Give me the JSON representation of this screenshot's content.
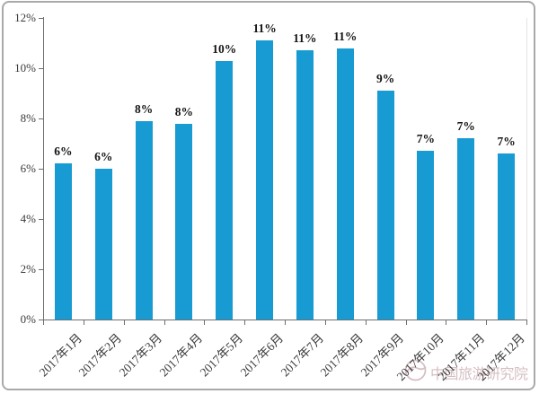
{
  "chart_data": {
    "type": "bar",
    "title": "",
    "xlabel": "",
    "ylabel": "",
    "categories": [
      "2017年1月",
      "2017年2月",
      "2017年3月",
      "2017年4月",
      "2017年5月",
      "2017年6月",
      "2017年7月",
      "2017年8月",
      "2017年9月",
      "2017年10月",
      "2017年11月",
      "2017年12月"
    ],
    "values": [
      6.2,
      6.0,
      7.9,
      7.8,
      10.3,
      11.1,
      10.7,
      10.8,
      9.1,
      6.7,
      7.2,
      6.6
    ],
    "bar_labels": [
      "6%",
      "6%",
      "8%",
      "8%",
      "10%",
      "11%",
      "11%",
      "11%",
      "9%",
      "7%",
      "7%",
      "7%"
    ],
    "ylim": [
      0,
      12
    ],
    "y_tick_step": 2,
    "y_tick_labels": [
      "0%",
      "2%",
      "4%",
      "6%",
      "8%",
      "10%",
      "12%"
    ],
    "grid": false,
    "legend": "none",
    "bar_color": "#189bd3",
    "axis_color": "#6e6e6e",
    "tick_label_color": "#3a3a3a",
    "value_label_color": "#141414"
  },
  "watermark": {
    "text": "中国旅游研究院",
    "icon": "china-tourism-academy-logo",
    "color": "#d6bfc2"
  }
}
